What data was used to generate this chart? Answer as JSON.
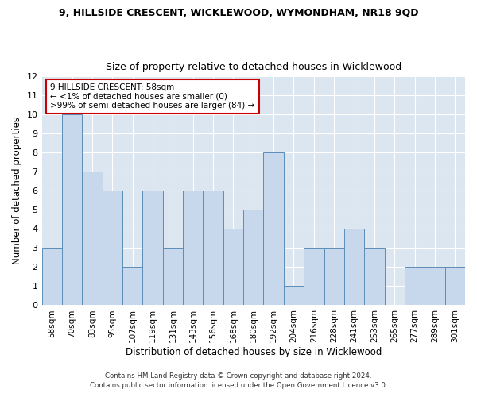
{
  "title1": "9, HILLSIDE CRESCENT, WICKLEWOOD, WYMONDHAM, NR18 9QD",
  "title2": "Size of property relative to detached houses in Wicklewood",
  "xlabel": "Distribution of detached houses by size in Wicklewood",
  "ylabel": "Number of detached properties",
  "categories": [
    "58sqm",
    "70sqm",
    "83sqm",
    "95sqm",
    "107sqm",
    "119sqm",
    "131sqm",
    "143sqm",
    "156sqm",
    "168sqm",
    "180sqm",
    "192sqm",
    "204sqm",
    "216sqm",
    "228sqm",
    "241sqm",
    "253sqm",
    "265sqm",
    "277sqm",
    "289sqm",
    "301sqm"
  ],
  "values": [
    3,
    10,
    7,
    6,
    2,
    6,
    3,
    6,
    6,
    4,
    5,
    8,
    1,
    3,
    3,
    4,
    3,
    0,
    2,
    2,
    2
  ],
  "bar_color": "#c8d8ec",
  "bar_edge_color": "#5b8db8",
  "annotation_box_color": "#ffffff",
  "annotation_border_color": "#cc0000",
  "annotation_text_line1": "9 HILLSIDE CRESCENT: 58sqm",
  "annotation_text_line2": "← <1% of detached houses are smaller (0)",
  "annotation_text_line3": ">99% of semi-detached houses are larger (84) →",
  "ylim": [
    0,
    12
  ],
  "yticks": [
    0,
    1,
    2,
    3,
    4,
    5,
    6,
    7,
    8,
    9,
    10,
    11,
    12
  ],
  "footer1": "Contains HM Land Registry data © Crown copyright and database right 2024.",
  "footer2": "Contains public sector information licensed under the Open Government Licence v3.0.",
  "bg_color": "#ffffff",
  "plot_bg_color": "#dce6f0"
}
